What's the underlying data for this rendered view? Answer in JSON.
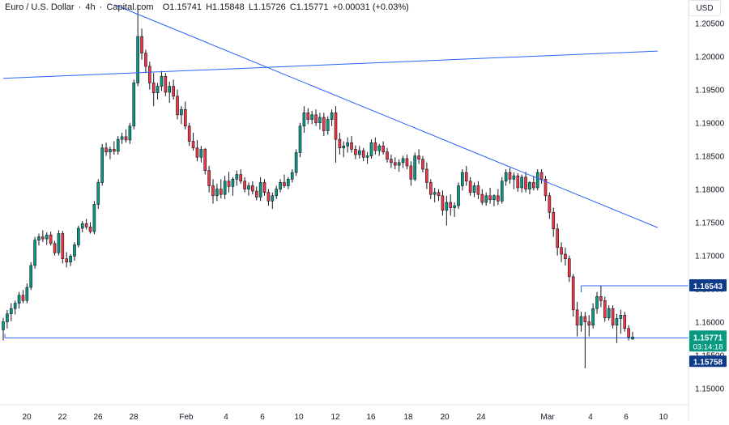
{
  "header": {
    "symbol": "Euro / U.S. Dollar",
    "sep1": "·",
    "interval": "4h",
    "sep2": "·",
    "source": "Capital.com",
    "open": "O1.15741",
    "high": "H1.15848",
    "low": "L1.15726",
    "close": "C1.15771",
    "change": "+0.00031 (+0.03%)"
  },
  "currency_button": "USD",
  "chart_data": {
    "type": "candlestick",
    "ylim": [
      1.1475,
      1.2085
    ],
    "x_tick_labels": [
      "20",
      "22",
      "26",
      "28",
      "Feb",
      "4",
      "6",
      "10",
      "12",
      "16",
      "18",
      "20",
      "24",
      "Mar",
      "4",
      "6",
      "10"
    ],
    "y_tick_labels": [
      "1.20500",
      "1.20000",
      "1.19500",
      "1.19000",
      "1.18500",
      "1.18000",
      "1.17500",
      "1.17000",
      "1.16500",
      "1.16000",
      "1.15500",
      "1.15000"
    ],
    "y_tick_values": [
      1.205,
      1.2,
      1.195,
      1.19,
      1.185,
      1.18,
      1.175,
      1.17,
      1.165,
      1.16,
      1.155,
      1.15
    ],
    "price_labels": [
      {
        "text": "1.16543",
        "value": 1.16543,
        "color": "#0e3a8a"
      },
      {
        "text": "1.15771",
        "sub": "03:14:18",
        "value": 1.15771,
        "color": "#089981"
      },
      {
        "text": "1.15758",
        "value": 1.15758,
        "color": "#0e3a8a"
      }
    ],
    "colors": {
      "up": "#089981",
      "down": "#f23645",
      "line": "#2962ff",
      "wick": "#131722"
    },
    "trend_lines": [
      {
        "name": "downtrend",
        "from": {
          "t": 0.142,
          "y": 1.2078
        },
        "to": {
          "t": 0.836,
          "y": 1.1742
        }
      },
      {
        "name": "rising",
        "from": {
          "t": 0.0,
          "y": 1.1967
        },
        "to": {
          "t": 0.836,
          "y": 1.2008
        }
      }
    ],
    "horizontal_levels": [
      1.15758,
      1.16543
    ],
    "candles": [
      [
        1.1588,
        1.1606,
        1.1572,
        1.16
      ],
      [
        1.16,
        1.1618,
        1.159,
        1.1612
      ],
      [
        1.1612,
        1.1628,
        1.1601,
        1.162
      ],
      [
        1.162,
        1.1632,
        1.1611,
        1.1628
      ],
      [
        1.1628,
        1.1645,
        1.162,
        1.164
      ],
      [
        1.164,
        1.1648,
        1.1628,
        1.1632
      ],
      [
        1.1632,
        1.1658,
        1.1628,
        1.1652
      ],
      [
        1.1652,
        1.169,
        1.1648,
        1.1685
      ],
      [
        1.1685,
        1.1728,
        1.168,
        1.1723
      ],
      [
        1.1723,
        1.1733,
        1.1715,
        1.1728
      ],
      [
        1.1728,
        1.1738,
        1.172,
        1.1725
      ],
      [
        1.1725,
        1.1735,
        1.1716,
        1.1731
      ],
      [
        1.1731,
        1.1736,
        1.1715,
        1.1718
      ],
      [
        1.1718,
        1.1722,
        1.17,
        1.1704
      ],
      [
        1.1704,
        1.1738,
        1.17,
        1.1733
      ],
      [
        1.1733,
        1.1737,
        1.1688,
        1.1695
      ],
      [
        1.1695,
        1.1705,
        1.1682,
        1.169
      ],
      [
        1.169,
        1.1702,
        1.1684,
        1.1699
      ],
      [
        1.1699,
        1.172,
        1.1692,
        1.1716
      ],
      [
        1.1716,
        1.1745,
        1.1712,
        1.1741
      ],
      [
        1.1741,
        1.1752,
        1.1735,
        1.1748
      ],
      [
        1.1748,
        1.1755,
        1.1739,
        1.1743
      ],
      [
        1.1743,
        1.175,
        1.1733,
        1.1736
      ],
      [
        1.1736,
        1.1782,
        1.1732,
        1.1777
      ],
      [
        1.1777,
        1.1815,
        1.177,
        1.181
      ],
      [
        1.181,
        1.1868,
        1.1805,
        1.1862
      ],
      [
        1.1862,
        1.187,
        1.185,
        1.1856
      ],
      [
        1.1856,
        1.1864,
        1.1845,
        1.186
      ],
      [
        1.186,
        1.1872,
        1.1852,
        1.1857
      ],
      [
        1.1857,
        1.188,
        1.1852,
        1.1875
      ],
      [
        1.1875,
        1.1885,
        1.1868,
        1.1879
      ],
      [
        1.1879,
        1.189,
        1.187,
        1.1874
      ],
      [
        1.1874,
        1.19,
        1.1868,
        1.1895
      ],
      [
        1.1895,
        1.1965,
        1.189,
        1.196
      ],
      [
        1.196,
        1.2078,
        1.1955,
        1.203
      ],
      [
        1.203,
        1.2042,
        1.1995,
        1.2005
      ],
      [
        1.2005,
        1.201,
        1.1975,
        1.1985
      ],
      [
        1.1985,
        1.1992,
        1.195,
        1.196
      ],
      [
        1.196,
        1.1975,
        1.1925,
        1.1945
      ],
      [
        1.1945,
        1.196,
        1.1935,
        1.1955
      ],
      [
        1.1955,
        1.1978,
        1.1948,
        1.197
      ],
      [
        1.197,
        1.1975,
        1.194,
        1.1946
      ],
      [
        1.1946,
        1.1962,
        1.193,
        1.1955
      ],
      [
        1.1955,
        1.1965,
        1.1935,
        1.194
      ],
      [
        1.194,
        1.195,
        1.1905,
        1.1912
      ],
      [
        1.1912,
        1.1925,
        1.1898,
        1.192
      ],
      [
        1.192,
        1.1932,
        1.189,
        1.1895
      ],
      [
        1.1895,
        1.19,
        1.1865,
        1.1872
      ],
      [
        1.1872,
        1.1885,
        1.1858,
        1.1862
      ],
      [
        1.1862,
        1.1874,
        1.1842,
        1.1848
      ],
      [
        1.1848,
        1.1865,
        1.184,
        1.186
      ],
      [
        1.186,
        1.1862,
        1.1822,
        1.1828
      ],
      [
        1.1828,
        1.1835,
        1.1795,
        1.1805
      ],
      [
        1.1805,
        1.1815,
        1.1778,
        1.179
      ],
      [
        1.179,
        1.1808,
        1.1782,
        1.18
      ],
      [
        1.18,
        1.1815,
        1.1786,
        1.1792
      ],
      [
        1.1792,
        1.182,
        1.1785,
        1.1812
      ],
      [
        1.1812,
        1.1826,
        1.1795,
        1.1804
      ],
      [
        1.1804,
        1.1818,
        1.179,
        1.1815
      ],
      [
        1.1815,
        1.1828,
        1.1805,
        1.1822
      ],
      [
        1.1822,
        1.183,
        1.1808,
        1.1812
      ],
      [
        1.1812,
        1.1818,
        1.1795,
        1.18
      ],
      [
        1.18,
        1.181,
        1.179,
        1.1805
      ],
      [
        1.1805,
        1.1812,
        1.1792,
        1.1797
      ],
      [
        1.1797,
        1.1804,
        1.1783,
        1.1788
      ],
      [
        1.1788,
        1.1818,
        1.1782,
        1.181
      ],
      [
        1.181,
        1.1815,
        1.179,
        1.1795
      ],
      [
        1.1795,
        1.18,
        1.1775,
        1.1782
      ],
      [
        1.1782,
        1.1795,
        1.177,
        1.179
      ],
      [
        1.179,
        1.1805,
        1.1785,
        1.18
      ],
      [
        1.18,
        1.1815,
        1.1795,
        1.181
      ],
      [
        1.181,
        1.1822,
        1.1802,
        1.1805
      ],
      [
        1.1805,
        1.1818,
        1.18,
        1.1815
      ],
      [
        1.1815,
        1.183,
        1.181,
        1.1825
      ],
      [
        1.1825,
        1.186,
        1.182,
        1.1855
      ],
      [
        1.1855,
        1.19,
        1.1848,
        1.1895
      ],
      [
        1.1895,
        1.1925,
        1.1885,
        1.1915
      ],
      [
        1.1915,
        1.1922,
        1.1898,
        1.1905
      ],
      [
        1.1905,
        1.1918,
        1.1898,
        1.1912
      ],
      [
        1.1912,
        1.192,
        1.1895,
        1.19
      ],
      [
        1.19,
        1.1915,
        1.189,
        1.1908
      ],
      [
        1.1908,
        1.1915,
        1.188,
        1.1888
      ],
      [
        1.1888,
        1.191,
        1.1882,
        1.1905
      ],
      [
        1.1905,
        1.192,
        1.1895,
        1.1915
      ],
      [
        1.1915,
        1.1925,
        1.184,
        1.1875
      ],
      [
        1.1875,
        1.1885,
        1.1852,
        1.1862
      ],
      [
        1.1862,
        1.1872,
        1.1848,
        1.1865
      ],
      [
        1.1865,
        1.1878,
        1.1855,
        1.187
      ],
      [
        1.187,
        1.188,
        1.1855,
        1.186
      ],
      [
        1.186,
        1.1866,
        1.1845,
        1.1852
      ],
      [
        1.1852,
        1.1865,
        1.1846,
        1.1858
      ],
      [
        1.1858,
        1.1862,
        1.1842,
        1.1848
      ],
      [
        1.1848,
        1.1856,
        1.1838,
        1.185
      ],
      [
        1.185,
        1.1875,
        1.1846,
        1.187
      ],
      [
        1.187,
        1.1878,
        1.1852,
        1.1858
      ],
      [
        1.1858,
        1.1868,
        1.185,
        1.1865
      ],
      [
        1.1865,
        1.1872,
        1.1852,
        1.1856
      ],
      [
        1.1856,
        1.1862,
        1.184,
        1.1845
      ],
      [
        1.1845,
        1.1852,
        1.1832,
        1.184
      ],
      [
        1.184,
        1.1848,
        1.183,
        1.1836
      ],
      [
        1.1836,
        1.1845,
        1.1826,
        1.184
      ],
      [
        1.184,
        1.185,
        1.1832,
        1.1846
      ],
      [
        1.1846,
        1.1852,
        1.183,
        1.1835
      ],
      [
        1.1835,
        1.1842,
        1.1805,
        1.1815
      ],
      [
        1.1815,
        1.1855,
        1.1812,
        1.185
      ],
      [
        1.185,
        1.186,
        1.1838,
        1.1845
      ],
      [
        1.1845,
        1.185,
        1.1825,
        1.183
      ],
      [
        1.183,
        1.184,
        1.18,
        1.181
      ],
      [
        1.181,
        1.1815,
        1.1785,
        1.1792
      ],
      [
        1.1792,
        1.1802,
        1.178,
        1.1795
      ],
      [
        1.1795,
        1.18,
        1.1782,
        1.179
      ],
      [
        1.179,
        1.1798,
        1.176,
        1.1768
      ],
      [
        1.1768,
        1.179,
        1.1745,
        1.178
      ],
      [
        1.178,
        1.1792,
        1.176,
        1.1772
      ],
      [
        1.1772,
        1.178,
        1.1758,
        1.1775
      ],
      [
        1.1775,
        1.181,
        1.177,
        1.1805
      ],
      [
        1.1805,
        1.183,
        1.1798,
        1.1825
      ],
      [
        1.1825,
        1.1835,
        1.1805,
        1.1812
      ],
      [
        1.1812,
        1.1818,
        1.179,
        1.1795
      ],
      [
        1.1795,
        1.181,
        1.1788,
        1.1805
      ],
      [
        1.1805,
        1.1812,
        1.1785,
        1.1792
      ],
      [
        1.1792,
        1.18,
        1.1776,
        1.178
      ],
      [
        1.178,
        1.1795,
        1.1775,
        1.179
      ],
      [
        1.179,
        1.1802,
        1.1778,
        1.1784
      ],
      [
        1.1784,
        1.1792,
        1.1774,
        1.179
      ],
      [
        1.179,
        1.18,
        1.1776,
        1.1782
      ],
      [
        1.1782,
        1.1818,
        1.1778,
        1.1812
      ],
      [
        1.1812,
        1.183,
        1.1805,
        1.1825
      ],
      [
        1.1825,
        1.1832,
        1.1808,
        1.1815
      ],
      [
        1.1815,
        1.1825,
        1.18,
        1.182
      ],
      [
        1.182,
        1.1824,
        1.1796,
        1.1802
      ],
      [
        1.1802,
        1.1822,
        1.1795,
        1.1818
      ],
      [
        1.1818,
        1.1826,
        1.1795,
        1.18
      ],
      [
        1.18,
        1.1812,
        1.1792,
        1.181
      ],
      [
        1.181,
        1.182,
        1.1798,
        1.1802
      ],
      [
        1.1802,
        1.183,
        1.1798,
        1.1825
      ],
      [
        1.1825,
        1.183,
        1.1808,
        1.1815
      ],
      [
        1.1815,
        1.182,
        1.1782,
        1.179
      ],
      [
        1.179,
        1.1795,
        1.1755,
        1.1765
      ],
      [
        1.1765,
        1.1772,
        1.1728,
        1.174
      ],
      [
        1.174,
        1.1748,
        1.17,
        1.1712
      ],
      [
        1.1712,
        1.172,
        1.169,
        1.1702
      ],
      [
        1.1702,
        1.1712,
        1.1685,
        1.1695
      ],
      [
        1.1695,
        1.17,
        1.166,
        1.1668
      ],
      [
        1.1668,
        1.1672,
        1.1608,
        1.1618
      ],
      [
        1.1618,
        1.163,
        1.1578,
        1.1595
      ],
      [
        1.1595,
        1.1615,
        1.1585,
        1.1608
      ],
      [
        1.1608,
        1.1615,
        1.153,
        1.16
      ],
      [
        1.16,
        1.161,
        1.1578,
        1.1595
      ],
      [
        1.1595,
        1.1628,
        1.159,
        1.162
      ],
      [
        1.162,
        1.1645,
        1.1612,
        1.1638
      ],
      [
        1.1638,
        1.1654,
        1.1622,
        1.1632
      ],
      [
        1.1632,
        1.1638,
        1.16,
        1.1606
      ],
      [
        1.1606,
        1.1625,
        1.1602,
        1.162
      ],
      [
        1.162,
        1.1625,
        1.159,
        1.1595
      ],
      [
        1.1595,
        1.1612,
        1.1568,
        1.1605
      ],
      [
        1.1605,
        1.1618,
        1.1582,
        1.161
      ],
      [
        1.161,
        1.1615,
        1.1585,
        1.159
      ],
      [
        1.159,
        1.1595,
        1.1572,
        1.1577
      ],
      [
        1.1574,
        1.1585,
        1.1573,
        1.1577
      ]
    ]
  }
}
